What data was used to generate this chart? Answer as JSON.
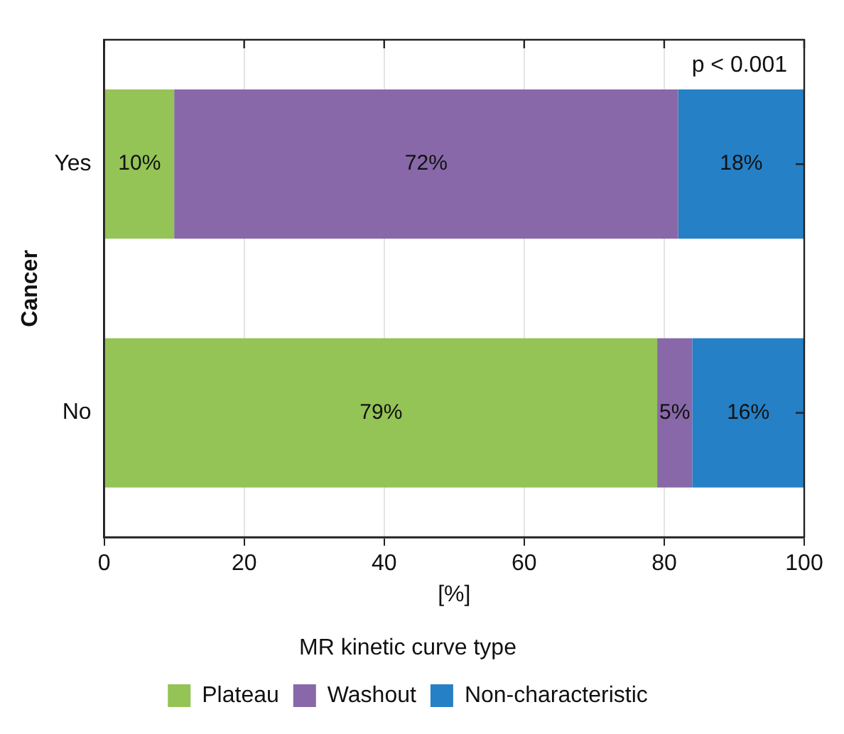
{
  "chart_data": {
    "type": "bar",
    "orientation": "horizontal",
    "stacked": true,
    "ylabel": "Cancer",
    "xlabel": "[%]",
    "legend_title": "MR kinetic curve type",
    "legend": "bottom",
    "grid": "x",
    "categories": [
      "Yes",
      "No"
    ],
    "xlim": [
      0,
      100
    ],
    "xticks": [
      0,
      20,
      40,
      60,
      80,
      100
    ],
    "annotations": [
      "p < 0.001"
    ],
    "series": [
      {
        "name": "Plateau",
        "color": "#94c356",
        "values": [
          10,
          79
        ],
        "value_labels": [
          "10%",
          "79%"
        ]
      },
      {
        "name": "Washout",
        "color": "#8868a8",
        "values": [
          72,
          5
        ],
        "value_labels": [
          "72%",
          "5%"
        ]
      },
      {
        "name": "Non-characteristic",
        "color": "#2580c6",
        "values": [
          18,
          16
        ],
        "value_labels": [
          "18%",
          "16%"
        ]
      }
    ]
  }
}
